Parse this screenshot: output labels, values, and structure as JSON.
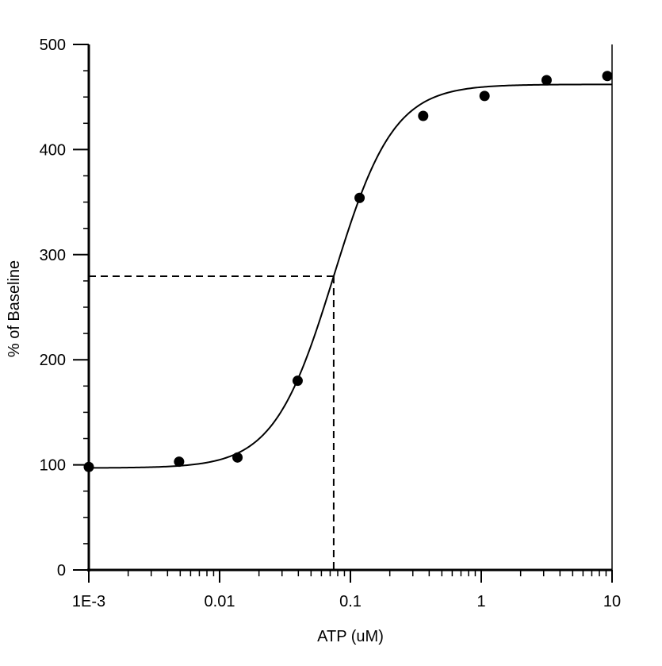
{
  "chart_data": {
    "type": "scatter",
    "title": "",
    "xlabel": "ATP (uM)",
    "ylabel": "% of Baseline",
    "x_scale": "log",
    "xlim": [
      0.001,
      10
    ],
    "ylim": [
      0,
      500
    ],
    "grid": false,
    "x_ticks": [
      {
        "value": 0.001,
        "label": "1E-3"
      },
      {
        "value": 0.01,
        "label": "0.01"
      },
      {
        "value": 0.1,
        "label": "0.1"
      },
      {
        "value": 1,
        "label": "1"
      },
      {
        "value": 10,
        "label": "10"
      }
    ],
    "y_ticks": [
      {
        "value": 0,
        "label": "0"
      },
      {
        "value": 100,
        "label": "100"
      },
      {
        "value": 200,
        "label": "200"
      },
      {
        "value": 300,
        "label": "300"
      },
      {
        "value": 400,
        "label": "400"
      },
      {
        "value": 500,
        "label": "500"
      }
    ],
    "points": [
      {
        "x": 0.001,
        "y": 98
      },
      {
        "x": 0.0049,
        "y": 103
      },
      {
        "x": 0.0137,
        "y": 107
      },
      {
        "x": 0.0395,
        "y": 180
      },
      {
        "x": 0.1175,
        "y": 354
      },
      {
        "x": 0.36,
        "y": 432
      },
      {
        "x": 1.06,
        "y": 451
      },
      {
        "x": 3.16,
        "y": 466
      },
      {
        "x": 9.2,
        "y": 470
      }
    ],
    "fit_curve": {
      "model": "four-parameter logistic",
      "bottom": 97,
      "top": 462,
      "ec50": 0.0745,
      "hill": 1.9
    },
    "ec50_marker": {
      "x": 0.0745,
      "y": 279.5,
      "style": "dashed"
    }
  }
}
